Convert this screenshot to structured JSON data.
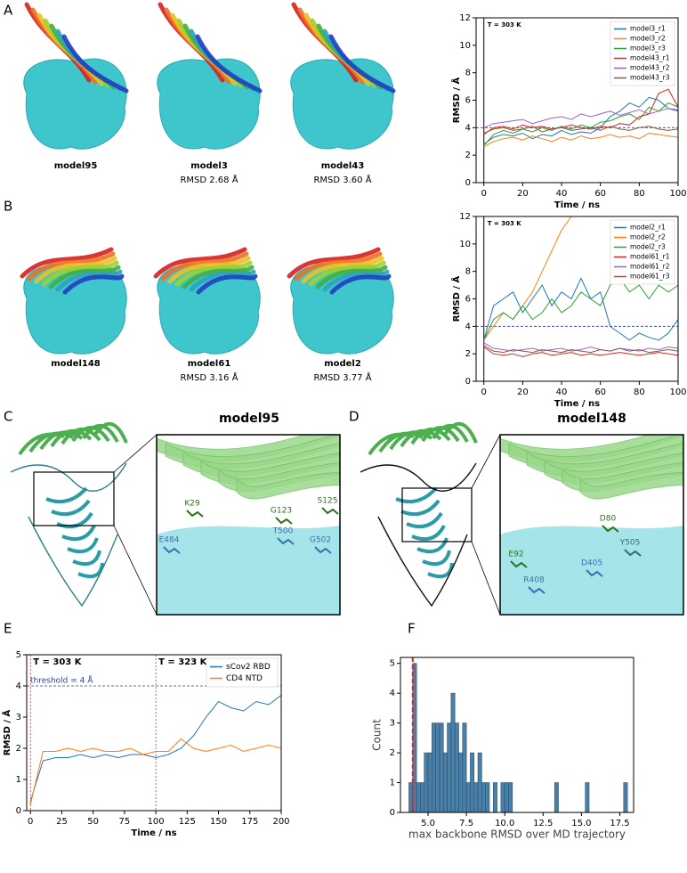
{
  "panel_labels": [
    "A",
    "B",
    "C",
    "D",
    "E",
    "F"
  ],
  "structures": [
    {
      "name": "model95"
    },
    {
      "name": "model3",
      "rmsd": "RMSD 2.68 Å"
    },
    {
      "name": "model43",
      "rmsd": "RMSD 3.60 Å"
    },
    {
      "name": "model148"
    },
    {
      "name": "model61",
      "rmsd": "RMSD 3.16 Å"
    },
    {
      "name": "model2",
      "rmsd": "RMSD 3.77 Å"
    }
  ],
  "closeups": [
    {
      "title": "model95",
      "residues": [
        "K29",
        "G123",
        "S125",
        "E484",
        "T500",
        "G502"
      ]
    },
    {
      "title": "model148",
      "residues": [
        "D80",
        "Y505",
        "E92",
        "D405",
        "R408"
      ]
    }
  ],
  "chart_data": [
    {
      "type": "line",
      "xlabel": "Time / ns",
      "ylabel": "RMSD / Å",
      "annotation": "T = 303 K",
      "marker_x": 0,
      "threshold": 4,
      "xlim": [
        -4,
        100
      ],
      "ylim": [
        0,
        12
      ],
      "xticks": [
        0,
        20,
        40,
        60,
        80,
        100
      ],
      "yticks": [
        0,
        2,
        4,
        6,
        8,
        10,
        12
      ],
      "legend": "upper right",
      "x": [
        0,
        5,
        10,
        15,
        20,
        25,
        30,
        35,
        40,
        45,
        50,
        55,
        60,
        65,
        70,
        75,
        80,
        85,
        90,
        95,
        100
      ],
      "series": [
        {
          "name": "model3_r1",
          "color": "#1f77b4",
          "values": [
            2.8,
            3.3,
            3.5,
            3.4,
            3.6,
            3.2,
            3.5,
            3.4,
            3.8,
            3.5,
            3.7,
            3.6,
            4.0,
            4.8,
            5.2,
            5.8,
            5.5,
            6.2,
            6.0,
            5.4,
            5.2
          ]
        },
        {
          "name": "model3_r2",
          "color": "#ff7f0e",
          "values": [
            2.6,
            3.0,
            3.2,
            3.3,
            3.1,
            3.4,
            3.2,
            3.0,
            3.3,
            3.1,
            3.4,
            3.2,
            3.3,
            3.5,
            3.3,
            3.4,
            3.2,
            3.6,
            3.5,
            3.4,
            3.3
          ]
        },
        {
          "name": "model3_r3",
          "color": "#2ca02c",
          "values": [
            2.7,
            3.5,
            3.8,
            3.6,
            3.9,
            3.7,
            4.0,
            3.8,
            4.1,
            3.9,
            4.2,
            4.0,
            4.4,
            4.5,
            4.8,
            5.0,
            4.6,
            5.5,
            5.2,
            5.8,
            5.5
          ]
        },
        {
          "name": "model43_r1",
          "color": "#d62728",
          "values": [
            3.5,
            4.0,
            4.1,
            3.9,
            4.2,
            4.0,
            4.1,
            3.9,
            4.0,
            4.2,
            4.0,
            3.9,
            4.1,
            4.0,
            4.3,
            4.2,
            4.8,
            5.0,
            6.5,
            6.8,
            5.5
          ]
        },
        {
          "name": "model43_r2",
          "color": "#9467bd",
          "values": [
            4.0,
            4.3,
            4.4,
            4.5,
            4.6,
            4.3,
            4.5,
            4.7,
            4.8,
            4.6,
            5.0,
            4.8,
            5.0,
            5.2,
            4.9,
            5.1,
            5.3,
            5.0,
            5.2,
            5.4,
            5.3
          ]
        },
        {
          "name": "model43_r3",
          "color": "#8c564b",
          "values": [
            3.6,
            3.9,
            4.0,
            3.8,
            3.9,
            4.1,
            3.7,
            3.9,
            4.0,
            3.8,
            3.9,
            4.0,
            3.8,
            4.1,
            3.9,
            3.8,
            4.0,
            4.1,
            3.9,
            3.8,
            3.9
          ]
        }
      ]
    },
    {
      "type": "line",
      "xlabel": "Time / ns",
      "ylabel": "RMSD / Å",
      "annotation": "T = 303 K",
      "marker_x": 0,
      "threshold": 4,
      "xlim": [
        -4,
        100
      ],
      "ylim": [
        0,
        12
      ],
      "xticks": [
        0,
        20,
        40,
        60,
        80,
        100
      ],
      "yticks": [
        0,
        2,
        4,
        6,
        8,
        10,
        12
      ],
      "legend": "upper right",
      "x": [
        0,
        5,
        10,
        15,
        20,
        25,
        30,
        35,
        40,
        45,
        50,
        55,
        60,
        65,
        70,
        75,
        80,
        85,
        90,
        95,
        100
      ],
      "series": [
        {
          "name": "model2_r1",
          "color": "#1f77b4",
          "values": [
            3.0,
            5.5,
            6.0,
            6.5,
            5.0,
            6.0,
            7.0,
            5.5,
            6.5,
            6.0,
            7.5,
            6.0,
            6.5,
            4.0,
            3.5,
            3.0,
            3.5,
            3.2,
            3.0,
            3.5,
            4.5
          ]
        },
        {
          "name": "model2_r2",
          "color": "#ff7f0e",
          "values": [
            3.0,
            4.0,
            5.0,
            4.5,
            5.5,
            6.5,
            8.0,
            9.5,
            11.0,
            12.0,
            null,
            null,
            null,
            null,
            null,
            null,
            null,
            null,
            null,
            null,
            null
          ]
        },
        {
          "name": "model2_r3",
          "color": "#2ca02c",
          "values": [
            3.0,
            4.5,
            5.0,
            4.5,
            5.5,
            4.5,
            5.0,
            6.0,
            5.0,
            5.5,
            6.5,
            6.0,
            5.5,
            7.0,
            7.5,
            6.5,
            7.0,
            6.0,
            7.0,
            6.5,
            7.0
          ]
        },
        {
          "name": "model61_r1",
          "color": "#d62728",
          "values": [
            2.5,
            2.0,
            1.9,
            2.0,
            1.8,
            2.0,
            2.1,
            1.9,
            2.0,
            2.1,
            1.9,
            2.0,
            1.9,
            2.0,
            2.1,
            2.0,
            1.9,
            2.0,
            2.1,
            2.0,
            1.9
          ]
        },
        {
          "name": "model61_r2",
          "color": "#9467bd",
          "values": [
            2.8,
            2.4,
            2.3,
            2.2,
            2.3,
            2.4,
            2.2,
            2.3,
            2.4,
            2.2,
            2.3,
            2.5,
            2.3,
            2.2,
            2.4,
            2.3,
            2.2,
            2.4,
            2.3,
            2.5,
            2.4
          ]
        },
        {
          "name": "model61_r3",
          "color": "#8c564b",
          "values": [
            2.6,
            2.2,
            2.1,
            2.3,
            2.2,
            2.1,
            2.3,
            2.2,
            2.1,
            2.3,
            2.2,
            2.1,
            2.3,
            2.2,
            2.4,
            2.2,
            2.3,
            2.1,
            2.2,
            2.3,
            2.2
          ]
        }
      ]
    },
    {
      "type": "line",
      "xlabel": "Time / ns",
      "ylabel": "RMSD / Å",
      "markers": [
        {
          "x": 0,
          "label": "T = 303 K"
        },
        {
          "x": 100,
          "label": "T = 323 K"
        }
      ],
      "threshold": {
        "value": 4,
        "label": "threshold = 4 Å"
      },
      "xlim": [
        -3,
        200
      ],
      "ylim": [
        0,
        5
      ],
      "xticks": [
        0,
        25,
        50,
        75,
        100,
        125,
        150,
        175,
        200
      ],
      "yticks": [
        0,
        1,
        2,
        3,
        4,
        5
      ],
      "legend": "upper right",
      "x": [
        0,
        10,
        20,
        30,
        40,
        50,
        60,
        70,
        80,
        90,
        100,
        110,
        120,
        130,
        140,
        150,
        160,
        170,
        180,
        190,
        200
      ],
      "series": [
        {
          "name": "sCov2 RBD",
          "color": "#1f77b4",
          "values": [
            0.3,
            1.6,
            1.7,
            1.7,
            1.8,
            1.7,
            1.8,
            1.7,
            1.8,
            1.8,
            1.7,
            1.8,
            2.0,
            2.4,
            3.0,
            3.5,
            3.3,
            3.2,
            3.5,
            3.4,
            3.7
          ]
        },
        {
          "name": "CD4 NTD",
          "color": "#ff7f0e",
          "values": [
            0.2,
            1.9,
            1.9,
            2.0,
            1.9,
            2.0,
            1.9,
            1.9,
            2.0,
            1.8,
            1.9,
            1.9,
            2.3,
            2.0,
            1.9,
            2.0,
            2.1,
            1.9,
            2.0,
            2.1,
            2.0
          ]
        }
      ]
    },
    {
      "type": "histogram",
      "xlabel": "max backbone RMSD over MD trajectory",
      "ylabel": "Count",
      "color": "#4a7fa8",
      "threshold": 4,
      "xlim": [
        3.2,
        18.4
      ],
      "ylim": [
        0,
        5.2
      ],
      "xticks": [
        {
          "value": 5,
          "label": "5.0"
        },
        7.5,
        {
          "value": 10,
          "label": "10.0"
        },
        12.5,
        {
          "value": 15,
          "label": "15.0"
        },
        17.5
      ],
      "yticks": [
        0,
        1,
        2,
        3,
        4,
        5
      ],
      "bins": [
        3.75,
        4,
        4.25,
        4.5,
        4.75,
        5,
        5.25,
        5.5,
        5.75,
        6,
        6.25,
        6.5,
        6.75,
        7,
        7.25,
        7.5,
        7.75,
        8,
        8.25,
        8.5,
        8.75,
        9,
        9.25,
        9.5,
        9.75,
        10,
        10.25,
        10.5,
        10.75,
        11,
        11.25,
        11.5,
        11.75,
        12,
        12.25,
        12.5,
        12.75,
        13,
        13.25,
        13.5,
        13.75,
        14,
        14.25,
        14.5,
        14.75,
        15,
        15.25,
        15.5,
        15.75,
        16,
        16.25,
        16.5,
        16.75,
        17,
        17.25,
        17.5,
        17.75,
        18
      ],
      "values": [
        1,
        5,
        1,
        1,
        2,
        2,
        3,
        3,
        3,
        2,
        3,
        4,
        3,
        2,
        3,
        1,
        2,
        1,
        2,
        1,
        1,
        0,
        1,
        0,
        1,
        1,
        1,
        0,
        0,
        0,
        0,
        0,
        0,
        0,
        0,
        0,
        0,
        0,
        1,
        0,
        0,
        0,
        0,
        0,
        0,
        0,
        1,
        0,
        0,
        0,
        0,
        0,
        0,
        0,
        0,
        0,
        1
      ]
    }
  ]
}
